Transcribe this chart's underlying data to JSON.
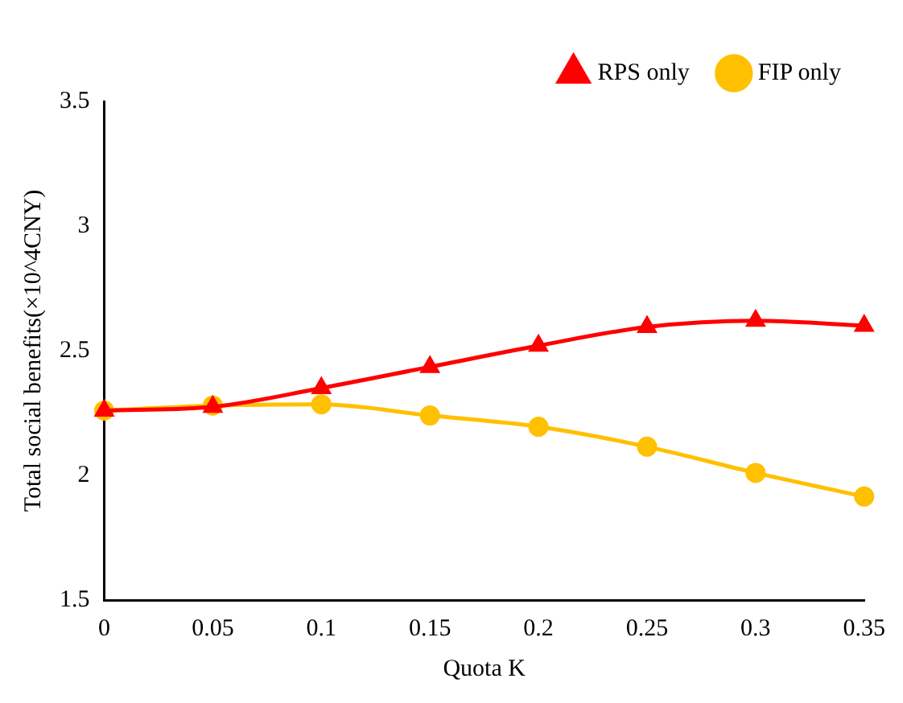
{
  "chart_data": {
    "type": "line",
    "xlabel": "Quota K",
    "ylabel": "Total social benefits(×10^4CNY)",
    "categories": [
      "0",
      "0.05",
      "0.1",
      "0.15",
      "0.2",
      "0.25",
      "0.3",
      "0.35"
    ],
    "series": [
      {
        "name": "FIP only",
        "color": "#ffc000",
        "marker": "circle",
        "values": [
          2.26,
          2.28,
          2.285,
          2.24,
          2.195,
          2.115,
          2.01,
          1.915
        ]
      },
      {
        "name": "RPS only",
        "color": "#ff0000",
        "marker": "triangle",
        "values": [
          2.26,
          2.275,
          2.35,
          2.435,
          2.52,
          2.595,
          2.62,
          2.6
        ]
      }
    ],
    "ylim": [
      1.5,
      3.5
    ],
    "yticks": [
      1.5,
      2,
      2.5,
      3,
      3.5
    ],
    "grid": false,
    "legend": "top right",
    "line_style": "solid"
  }
}
